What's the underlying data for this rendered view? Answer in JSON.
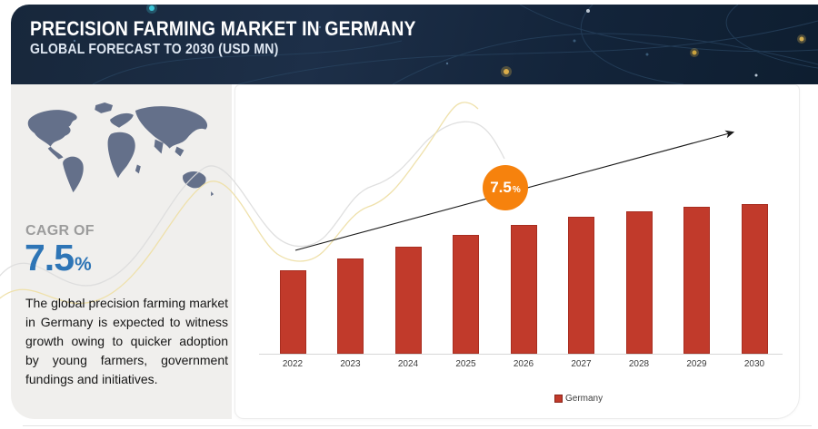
{
  "header": {
    "title": "PRECISION FARMING MARKET IN GERMANY",
    "subtitle": "GLOBAL FORECAST TO 2030 (USD MN)"
  },
  "sidebar": {
    "cagr_label": "CAGR OF",
    "cagr_value": "7.5",
    "cagr_unit": "%",
    "description": "The global precision farming market in Germany is expected to witness growth owing to quicker adoption by young farmers, government fundings and initiatives."
  },
  "cagr_badge": {
    "value": "7.5",
    "unit": "%"
  },
  "chart_data": {
    "type": "bar",
    "title": "",
    "categories": [
      "2022",
      "2023",
      "2024",
      "2025",
      "2026",
      "2027",
      "2028",
      "2029",
      "2030"
    ],
    "series": [
      {
        "name": "Germany",
        "color": "#c13a2b",
        "values": [
          100,
          114,
          128,
          142,
          154,
          164,
          171,
          176,
          179
        ]
      }
    ],
    "values_note": "Bars carry no data labels in the image; values are relative estimates from bar heights, indexed to 2022 = 100",
    "unit": "USD MN",
    "cagr": "7.5%",
    "legend_position": "bottom",
    "gridlines": false,
    "value_axis_labels": false,
    "trend_arrow": "upward"
  },
  "colors": {
    "header_bg": "#17273b",
    "accent_orange": "#f6820d",
    "bar_red": "#c13a2b",
    "cagr_blue": "#2e75b6",
    "map_gray": "#64708a",
    "sidebar_bg": "#f0efed"
  }
}
